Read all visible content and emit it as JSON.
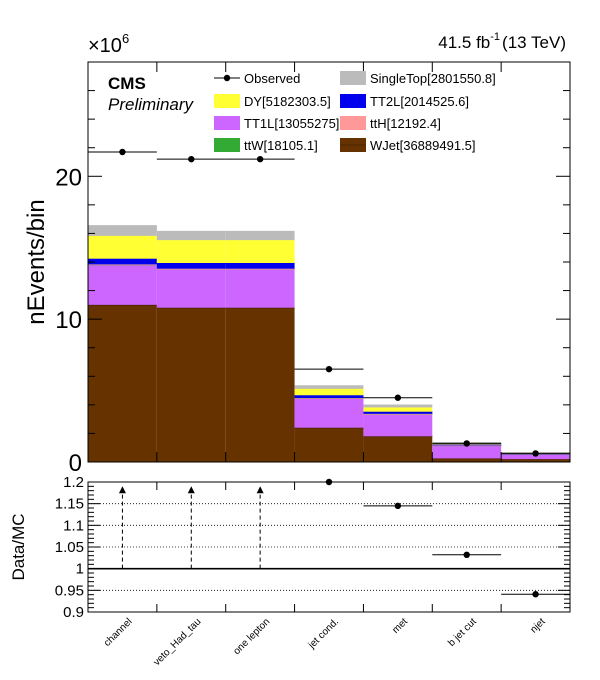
{
  "header": {
    "exponent_label": "×10",
    "exponent_power": "6",
    "lumi_value": "41.5 fb",
    "lumi_power": "-1",
    "lumi_energy": "(13 TeV)",
    "experiment": "CMS",
    "status": "Preliminary"
  },
  "chart_data": [
    {
      "type": "bar",
      "stacked": true,
      "categories": [
        "channel",
        "veto_Had_tau",
        "one lepton",
        "jet cond.",
        "met",
        "b jet cut",
        "njet"
      ],
      "ylabel": "nEvents/bin",
      "y_multiplier": "×10^6",
      "ylim": [
        0,
        28
      ],
      "y_ticks": [
        "0",
        "10",
        "20"
      ],
      "legend_position": "top",
      "series": [
        {
          "name": "WJet[36889491.5]",
          "color": "#663300",
          "values": [
            11.0,
            10.8,
            10.8,
            2.4,
            1.8,
            0.25,
            0.2
          ]
        },
        {
          "name": "TT1L[13055275]",
          "color": "#cc66ff",
          "values": [
            2.8,
            2.7,
            2.7,
            2.05,
            1.55,
            0.9,
            0.35
          ]
        },
        {
          "name": "ttW[18105.1]",
          "color": "#33aa33",
          "values": [
            0.02,
            0.02,
            0.02,
            0.01,
            0.01,
            0.01,
            0.005
          ]
        },
        {
          "name": "ttH[12192.4]",
          "color": "#ff9999",
          "values": [
            0.01,
            0.01,
            0.01,
            0.01,
            0.01,
            0.005,
            0.003
          ]
        },
        {
          "name": "TT2L[2014525.6]",
          "color": "#0000ee",
          "values": [
            0.4,
            0.4,
            0.4,
            0.2,
            0.15,
            0.06,
            0.03
          ]
        },
        {
          "name": "DY[5182303.5]",
          "color": "#ffff33",
          "values": [
            1.6,
            1.6,
            1.6,
            0.45,
            0.3,
            0.07,
            0.03
          ]
        },
        {
          "name": "SingleTop[2801550.8]",
          "color": "#bbbbbb",
          "values": [
            0.7,
            0.6,
            0.6,
            0.2,
            0.15,
            0.05,
            0.02
          ]
        }
      ],
      "observed": {
        "name": "Observed",
        "values": [
          21.7,
          21.2,
          21.2,
          6.5,
          4.5,
          1.3,
          0.6
        ]
      }
    },
    {
      "type": "scatter",
      "categories": [
        "channel",
        "veto_Had_tau",
        "one lepton",
        "jet cond.",
        "met",
        "b jet cut",
        "njet"
      ],
      "ylabel": "Data/MC",
      "ylim": [
        0.9,
        1.2
      ],
      "y_ticks": [
        "0.9",
        "0.95",
        "1",
        "1.05",
        "1.1",
        "1.15",
        "1.2"
      ],
      "ratio_values": [
        null,
        null,
        null,
        1.2,
        1.145,
        1.032,
        0.941
      ],
      "off_scale_arrows": [
        true,
        true,
        true,
        false,
        false,
        false,
        false
      ]
    }
  ]
}
